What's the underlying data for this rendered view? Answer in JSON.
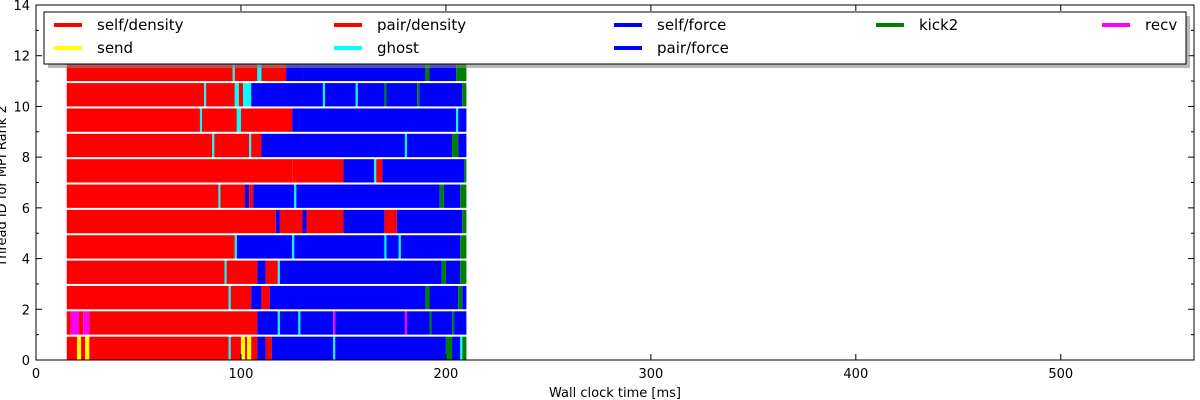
{
  "chart_data": {
    "type": "bar",
    "orientation": "horizontal-timeline",
    "title": "",
    "xlabel": "Wall clock time [ms]",
    "ylabel": "Thread ID for MPI Rank 2",
    "xlim": [
      0,
      565
    ],
    "ylim": [
      0,
      14
    ],
    "xticks": [
      0,
      100,
      200,
      300,
      400,
      500
    ],
    "yticks": [
      0,
      2,
      4,
      6,
      8,
      10,
      12,
      14
    ],
    "grid": false,
    "legend_position": "top",
    "legend": [
      {
        "name": "self/density",
        "color": "#ff0000"
      },
      {
        "name": "pair/density",
        "color": "#ff0000"
      },
      {
        "name": "self/force",
        "color": "#0000ff"
      },
      {
        "name": "kick2",
        "color": "#008000"
      },
      {
        "name": "recv",
        "color": "#ff00ff"
      },
      {
        "name": "send",
        "color": "#ffff00"
      },
      {
        "name": "ghost",
        "color": "#00ffff"
      },
      {
        "name": "pair/force",
        "color": "#0000ff"
      }
    ],
    "threads": [
      {
        "thread": 0,
        "segments": [
          {
            "task": "self/density",
            "start": 15,
            "end": 20
          },
          {
            "task": "send",
            "start": 20,
            "end": 22
          },
          {
            "task": "pair/density",
            "start": 22,
            "end": 24
          },
          {
            "task": "send",
            "start": 24,
            "end": 26
          },
          {
            "task": "pair/density",
            "start": 26,
            "end": 94
          },
          {
            "task": "ghost",
            "start": 94,
            "end": 95
          },
          {
            "task": "pair/density",
            "start": 95,
            "end": 100
          },
          {
            "task": "send",
            "start": 100,
            "end": 102
          },
          {
            "task": "pair/density",
            "start": 102,
            "end": 103
          },
          {
            "task": "send",
            "start": 103,
            "end": 105
          },
          {
            "task": "pair/density",
            "start": 105,
            "end": 108
          },
          {
            "task": "self/force",
            "start": 108,
            "end": 112
          },
          {
            "task": "pair/density",
            "start": 112,
            "end": 115
          },
          {
            "task": "self/force",
            "start": 115,
            "end": 145
          },
          {
            "task": "ghost",
            "start": 145,
            "end": 146
          },
          {
            "task": "pair/force",
            "start": 146,
            "end": 200
          },
          {
            "task": "kick2",
            "start": 200,
            "end": 203
          },
          {
            "task": "self/force",
            "start": 203,
            "end": 207
          },
          {
            "task": "ghost",
            "start": 207,
            "end": 208
          },
          {
            "task": "kick2",
            "start": 208,
            "end": 210
          }
        ]
      },
      {
        "thread": 1,
        "segments": [
          {
            "task": "self/density",
            "start": 15,
            "end": 17
          },
          {
            "task": "recv",
            "start": 17,
            "end": 21
          },
          {
            "task": "pair/density",
            "start": 21,
            "end": 23
          },
          {
            "task": "recv",
            "start": 23,
            "end": 26
          },
          {
            "task": "pair/density",
            "start": 26,
            "end": 108
          },
          {
            "task": "self/force",
            "start": 108,
            "end": 118
          },
          {
            "task": "ghost",
            "start": 118,
            "end": 119
          },
          {
            "task": "self/force",
            "start": 119,
            "end": 128
          },
          {
            "task": "ghost",
            "start": 128,
            "end": 129
          },
          {
            "task": "pair/force",
            "start": 129,
            "end": 145
          },
          {
            "task": "recv",
            "start": 145,
            "end": 146
          },
          {
            "task": "pair/force",
            "start": 146,
            "end": 180
          },
          {
            "task": "recv",
            "start": 180,
            "end": 181
          },
          {
            "task": "pair/force",
            "start": 181,
            "end": 192
          },
          {
            "task": "kick2",
            "start": 192,
            "end": 193
          },
          {
            "task": "pair/force",
            "start": 193,
            "end": 203
          },
          {
            "task": "kick2",
            "start": 203,
            "end": 204
          },
          {
            "task": "pair/force",
            "start": 204,
            "end": 210
          }
        ]
      },
      {
        "thread": 2,
        "segments": [
          {
            "task": "self/density",
            "start": 15,
            "end": 94
          },
          {
            "task": "ghost",
            "start": 94,
            "end": 95
          },
          {
            "task": "pair/density",
            "start": 95,
            "end": 105
          },
          {
            "task": "self/force",
            "start": 105,
            "end": 110
          },
          {
            "task": "pair/density",
            "start": 110,
            "end": 114
          },
          {
            "task": "self/force",
            "start": 114,
            "end": 190
          },
          {
            "task": "kick2",
            "start": 190,
            "end": 192
          },
          {
            "task": "pair/force",
            "start": 192,
            "end": 206
          },
          {
            "task": "kick2",
            "start": 206,
            "end": 208
          },
          {
            "task": "pair/force",
            "start": 208,
            "end": 210
          }
        ]
      },
      {
        "thread": 3,
        "segments": [
          {
            "task": "self/density",
            "start": 15,
            "end": 92
          },
          {
            "task": "ghost",
            "start": 92,
            "end": 93
          },
          {
            "task": "pair/density",
            "start": 93,
            "end": 108
          },
          {
            "task": "self/force",
            "start": 108,
            "end": 112
          },
          {
            "task": "pair/density",
            "start": 112,
            "end": 118
          },
          {
            "task": "ghost",
            "start": 118,
            "end": 119
          },
          {
            "task": "self/force",
            "start": 119,
            "end": 198
          },
          {
            "task": "kick2",
            "start": 198,
            "end": 200
          },
          {
            "task": "pair/force",
            "start": 200,
            "end": 207
          },
          {
            "task": "kick2",
            "start": 207,
            "end": 210
          }
        ]
      },
      {
        "thread": 4,
        "segments": [
          {
            "task": "self/density",
            "start": 15,
            "end": 97
          },
          {
            "task": "ghost",
            "start": 97,
            "end": 98
          },
          {
            "task": "self/force",
            "start": 98,
            "end": 125
          },
          {
            "task": "ghost",
            "start": 125,
            "end": 126
          },
          {
            "task": "pair/force",
            "start": 126,
            "end": 170
          },
          {
            "task": "ghost",
            "start": 170,
            "end": 171
          },
          {
            "task": "pair/force",
            "start": 171,
            "end": 177
          },
          {
            "task": "ghost",
            "start": 177,
            "end": 178
          },
          {
            "task": "pair/force",
            "start": 178,
            "end": 207
          },
          {
            "task": "kick2",
            "start": 207,
            "end": 210
          }
        ]
      },
      {
        "thread": 5,
        "segments": [
          {
            "task": "self/density",
            "start": 15,
            "end": 117
          },
          {
            "task": "self/force",
            "start": 117,
            "end": 119
          },
          {
            "task": "pair/density",
            "start": 119,
            "end": 130
          },
          {
            "task": "self/force",
            "start": 130,
            "end": 132
          },
          {
            "task": "pair/density",
            "start": 132,
            "end": 150
          },
          {
            "task": "self/force",
            "start": 150,
            "end": 170
          },
          {
            "task": "pair/density",
            "start": 170,
            "end": 176
          },
          {
            "task": "pair/force",
            "start": 176,
            "end": 208
          },
          {
            "task": "kick2",
            "start": 208,
            "end": 210
          }
        ]
      },
      {
        "thread": 6,
        "segments": [
          {
            "task": "self/density",
            "start": 15,
            "end": 89
          },
          {
            "task": "ghost",
            "start": 89,
            "end": 90
          },
          {
            "task": "pair/density",
            "start": 90,
            "end": 102
          },
          {
            "task": "self/force",
            "start": 102,
            "end": 104
          },
          {
            "task": "pair/density",
            "start": 104,
            "end": 106
          },
          {
            "task": "self/force",
            "start": 106,
            "end": 126
          },
          {
            "task": "ghost",
            "start": 126,
            "end": 127
          },
          {
            "task": "pair/force",
            "start": 127,
            "end": 197
          },
          {
            "task": "kick2",
            "start": 197,
            "end": 199
          },
          {
            "task": "pair/force",
            "start": 199,
            "end": 207
          },
          {
            "task": "kick2",
            "start": 207,
            "end": 210
          }
        ]
      },
      {
        "thread": 7,
        "segments": [
          {
            "task": "self/density",
            "start": 15,
            "end": 125
          },
          {
            "task": "pair/density",
            "start": 125,
            "end": 150
          },
          {
            "task": "self/force",
            "start": 150,
            "end": 165
          },
          {
            "task": "ghost",
            "start": 165,
            "end": 166
          },
          {
            "task": "pair/density",
            "start": 166,
            "end": 169
          },
          {
            "task": "pair/force",
            "start": 169,
            "end": 209
          },
          {
            "task": "kick2",
            "start": 209,
            "end": 210
          }
        ]
      },
      {
        "thread": 8,
        "segments": [
          {
            "task": "self/density",
            "start": 15,
            "end": 86
          },
          {
            "task": "ghost",
            "start": 86,
            "end": 87
          },
          {
            "task": "pair/density",
            "start": 87,
            "end": 104
          },
          {
            "task": "ghost",
            "start": 104,
            "end": 105
          },
          {
            "task": "pair/density",
            "start": 105,
            "end": 110
          },
          {
            "task": "self/force",
            "start": 110,
            "end": 180
          },
          {
            "task": "ghost",
            "start": 180,
            "end": 181
          },
          {
            "task": "pair/force",
            "start": 181,
            "end": 203
          },
          {
            "task": "kick2",
            "start": 203,
            "end": 206
          },
          {
            "task": "pair/force",
            "start": 206,
            "end": 210
          }
        ]
      },
      {
        "thread": 9,
        "segments": [
          {
            "task": "self/density",
            "start": 15,
            "end": 80
          },
          {
            "task": "ghost",
            "start": 80,
            "end": 81
          },
          {
            "task": "pair/density",
            "start": 81,
            "end": 98
          },
          {
            "task": "ghost",
            "start": 98,
            "end": 100
          },
          {
            "task": "pair/density",
            "start": 100,
            "end": 125
          },
          {
            "task": "self/force",
            "start": 125,
            "end": 205
          },
          {
            "task": "ghost",
            "start": 205,
            "end": 206
          },
          {
            "task": "pair/force",
            "start": 206,
            "end": 210
          }
        ]
      },
      {
        "thread": 10,
        "segments": [
          {
            "task": "self/density",
            "start": 15,
            "end": 82
          },
          {
            "task": "ghost",
            "start": 82,
            "end": 83
          },
          {
            "task": "pair/density",
            "start": 83,
            "end": 97
          },
          {
            "task": "ghost",
            "start": 97,
            "end": 99
          },
          {
            "task": "pair/density",
            "start": 99,
            "end": 101
          },
          {
            "task": "ghost",
            "start": 101,
            "end": 105
          },
          {
            "task": "self/force",
            "start": 105,
            "end": 140
          },
          {
            "task": "ghost",
            "start": 140,
            "end": 141
          },
          {
            "task": "pair/force",
            "start": 141,
            "end": 156
          },
          {
            "task": "ghost",
            "start": 156,
            "end": 157
          },
          {
            "task": "pair/force",
            "start": 157,
            "end": 170
          },
          {
            "task": "kick2",
            "start": 170,
            "end": 171
          },
          {
            "task": "pair/force",
            "start": 171,
            "end": 186
          },
          {
            "task": "kick2",
            "start": 186,
            "end": 187
          },
          {
            "task": "pair/force",
            "start": 187,
            "end": 208
          },
          {
            "task": "kick2",
            "start": 208,
            "end": 210
          }
        ]
      },
      {
        "thread": 11,
        "segments": [
          {
            "task": "self/density",
            "start": 15,
            "end": 96
          },
          {
            "task": "ghost",
            "start": 96,
            "end": 97
          },
          {
            "task": "pair/density",
            "start": 97,
            "end": 108
          },
          {
            "task": "ghost",
            "start": 108,
            "end": 110
          },
          {
            "task": "pair/density",
            "start": 110,
            "end": 122
          },
          {
            "task": "self/force",
            "start": 122,
            "end": 130
          },
          {
            "task": "pair/force",
            "start": 130,
            "end": 190
          },
          {
            "task": "kick2",
            "start": 190,
            "end": 192
          },
          {
            "task": "pair/force",
            "start": 192,
            "end": 205
          },
          {
            "task": "kick2",
            "start": 205,
            "end": 210
          }
        ]
      }
    ]
  }
}
